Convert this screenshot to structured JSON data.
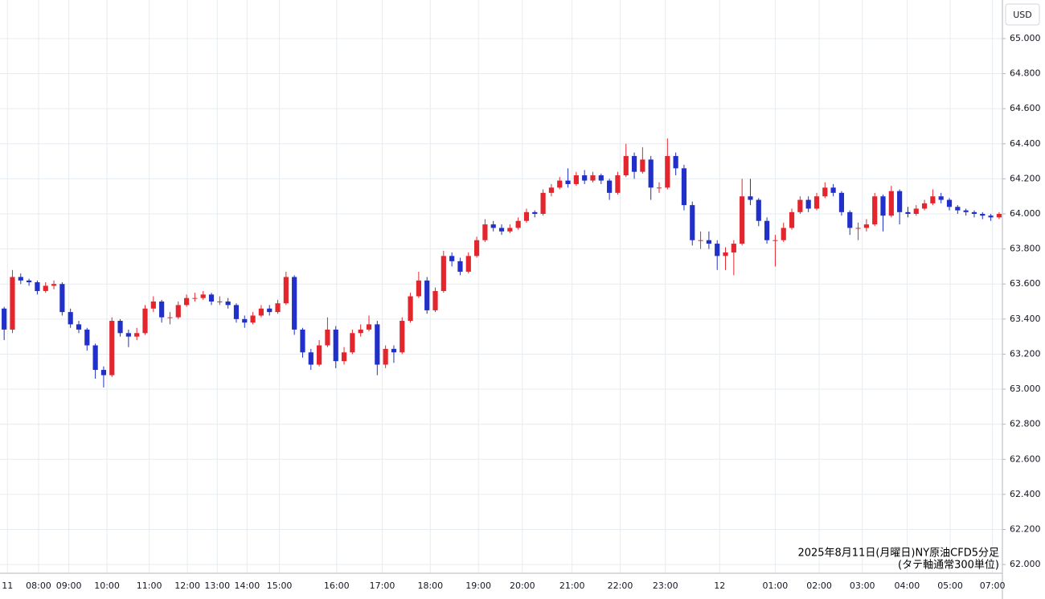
{
  "chart_data": {
    "type": "candlestick",
    "currency": "USD",
    "annotation": [
      "2025年8月11日(月曜日)NY原油CFD5分足",
      "(タテ軸通常300単位)"
    ],
    "up_color": "#e3262d",
    "down_color": "#2030c8",
    "grid": true,
    "xlim": [
      -0.5,
      120.3
    ],
    "ylim": [
      61.95,
      65.22
    ],
    "xticks": [
      {
        "value": 0.4,
        "label": "11"
      },
      {
        "value": 4.15,
        "label": "08:00"
      },
      {
        "value": 7.8,
        "label": "09:00"
      },
      {
        "value": 12.4,
        "label": "10:00"
      },
      {
        "value": 17.5,
        "label": "11:00"
      },
      {
        "value": 22.1,
        "label": "12:00"
      },
      {
        "value": 25.7,
        "label": "13:00"
      },
      {
        "value": 29.3,
        "label": "14:00"
      },
      {
        "value": 33.2,
        "label": "15:00"
      },
      {
        "value": 40.1,
        "label": "16:00"
      },
      {
        "value": 45.6,
        "label": "17:00"
      },
      {
        "value": 51.4,
        "label": "18:00"
      },
      {
        "value": 57.2,
        "label": "19:00"
      },
      {
        "value": 62.5,
        "label": "20:00"
      },
      {
        "value": 68.5,
        "label": "21:00"
      },
      {
        "value": 74.3,
        "label": "22:00"
      },
      {
        "value": 79.75,
        "label": "23:00"
      },
      {
        "value": 86.3,
        "label": "12"
      },
      {
        "value": 93,
        "label": "01:00"
      },
      {
        "value": 98.3,
        "label": "02:00"
      },
      {
        "value": 103.5,
        "label": "03:00"
      },
      {
        "value": 108.9,
        "label": "04:00"
      },
      {
        "value": 114.1,
        "label": "05:00"
      },
      {
        "value": 119.2,
        "label": "07:00"
      }
    ],
    "yticks": [
      {
        "value": 62,
        "label": "62.000"
      },
      {
        "value": 62.2,
        "label": "62.200"
      },
      {
        "value": 62.4,
        "label": "62.400"
      },
      {
        "value": 62.6,
        "label": "62.600"
      },
      {
        "value": 62.8,
        "label": "62.800"
      },
      {
        "value": 63,
        "label": "63.000"
      },
      {
        "value": 63.2,
        "label": "63.200"
      },
      {
        "value": 63.4,
        "label": "63.400"
      },
      {
        "value": 63.6,
        "label": "63.600"
      },
      {
        "value": 63.8,
        "label": "63.800"
      },
      {
        "value": 64,
        "label": "64.000"
      },
      {
        "value": 64.2,
        "label": "64.200"
      },
      {
        "value": 64.4,
        "label": "64.400"
      },
      {
        "value": 64.6,
        "label": "64.600"
      },
      {
        "value": 64.8,
        "label": "64.800"
      },
      {
        "value": 65,
        "label": "65.000"
      }
    ],
    "candles": [
      [
        63.46,
        63.47,
        63.28,
        63.34
      ],
      [
        63.34,
        63.68,
        63.32,
        63.64
      ],
      [
        63.64,
        63.66,
        63.6,
        63.62
      ],
      [
        63.62,
        63.63,
        63.59,
        63.61
      ],
      [
        63.61,
        63.62,
        63.54,
        63.56
      ],
      [
        63.56,
        63.61,
        63.55,
        63.59
      ],
      [
        63.59,
        63.62,
        63.57,
        63.6
      ],
      [
        63.6,
        63.61,
        63.42,
        63.44
      ],
      [
        63.44,
        63.46,
        63.35,
        63.37
      ],
      [
        63.37,
        63.39,
        63.32,
        63.34
      ],
      [
        63.34,
        63.35,
        63.22,
        63.25
      ],
      [
        63.25,
        63.26,
        63.06,
        63.11
      ],
      [
        63.11,
        63.13,
        63.01,
        63.08
      ],
      [
        63.08,
        63.41,
        63.07,
        63.39
      ],
      [
        63.39,
        63.4,
        63.3,
        63.32
      ],
      [
        63.32,
        63.34,
        63.24,
        63.3
      ],
      [
        63.3,
        63.35,
        63.28,
        63.32
      ],
      [
        63.32,
        63.48,
        63.31,
        63.46
      ],
      [
        63.46,
        63.53,
        63.44,
        63.5
      ],
      [
        63.5,
        63.51,
        63.38,
        63.41
      ],
      [
        63.41,
        63.44,
        63.37,
        63.41
      ],
      [
        63.41,
        63.5,
        63.4,
        63.48
      ],
      [
        63.48,
        63.54,
        63.47,
        63.52
      ],
      [
        63.52,
        63.55,
        63.5,
        63.52
      ],
      [
        63.52,
        63.56,
        63.51,
        63.54
      ],
      [
        63.54,
        63.55,
        63.48,
        63.5
      ],
      [
        63.5,
        63.53,
        63.48,
        63.5
      ],
      [
        63.5,
        63.52,
        63.46,
        63.48
      ],
      [
        63.48,
        63.49,
        63.38,
        63.4
      ],
      [
        63.4,
        63.42,
        63.35,
        63.38
      ],
      [
        63.38,
        63.44,
        63.37,
        63.42
      ],
      [
        63.42,
        63.48,
        63.41,
        63.46
      ],
      [
        63.46,
        63.48,
        63.42,
        63.44
      ],
      [
        63.44,
        63.51,
        63.43,
        63.49
      ],
      [
        63.49,
        63.67,
        63.48,
        63.64
      ],
      [
        63.64,
        63.65,
        63.31,
        63.34
      ],
      [
        63.34,
        63.35,
        63.18,
        63.21
      ],
      [
        63.21,
        63.23,
        63.11,
        63.14
      ],
      [
        63.14,
        63.28,
        63.13,
        63.25
      ],
      [
        63.25,
        63.41,
        63.24,
        63.34
      ],
      [
        63.34,
        63.36,
        63.12,
        63.16
      ],
      [
        63.16,
        63.24,
        63.14,
        63.21
      ],
      [
        63.21,
        63.34,
        63.2,
        63.32
      ],
      [
        63.32,
        63.37,
        63.3,
        63.34
      ],
      [
        63.34,
        63.42,
        63.33,
        63.37
      ],
      [
        63.37,
        63.39,
        63.08,
        63.14
      ],
      [
        63.14,
        63.25,
        63.12,
        63.23
      ],
      [
        63.23,
        63.25,
        63.15,
        63.21
      ],
      [
        63.21,
        63.41,
        63.2,
        63.39
      ],
      [
        63.39,
        63.55,
        63.38,
        63.53
      ],
      [
        63.53,
        63.67,
        63.52,
        63.62
      ],
      [
        63.62,
        63.64,
        63.43,
        63.45
      ],
      [
        63.45,
        63.58,
        63.44,
        63.56
      ],
      [
        63.56,
        63.79,
        63.55,
        63.76
      ],
      [
        63.76,
        63.78,
        63.7,
        63.73
      ],
      [
        63.73,
        63.75,
        63.65,
        63.67
      ],
      [
        63.67,
        63.78,
        63.66,
        63.76
      ],
      [
        63.76,
        63.87,
        63.75,
        63.85
      ],
      [
        63.85,
        63.97,
        63.84,
        63.94
      ],
      [
        63.94,
        63.96,
        63.9,
        63.92
      ],
      [
        63.92,
        63.94,
        63.88,
        63.9
      ],
      [
        63.9,
        63.94,
        63.89,
        63.92
      ],
      [
        63.92,
        63.98,
        63.91,
        63.96
      ],
      [
        63.96,
        64.03,
        63.95,
        64.01
      ],
      [
        64.01,
        64.02,
        63.98,
        64.0
      ],
      [
        64.0,
        64.14,
        63.99,
        64.12
      ],
      [
        64.12,
        64.17,
        64.1,
        64.15
      ],
      [
        64.15,
        64.21,
        64.14,
        64.19
      ],
      [
        64.19,
        64.26,
        64.15,
        64.17
      ],
      [
        64.17,
        64.24,
        64.16,
        64.22
      ],
      [
        64.22,
        64.25,
        64.17,
        64.19
      ],
      [
        64.19,
        64.24,
        64.18,
        64.22
      ],
      [
        64.22,
        64.23,
        64.17,
        64.19
      ],
      [
        64.19,
        64.2,
        64.08,
        64.12
      ],
      [
        64.12,
        64.24,
        64.11,
        64.22
      ],
      [
        64.22,
        64.4,
        64.21,
        64.33
      ],
      [
        64.33,
        64.35,
        64.2,
        64.24
      ],
      [
        64.24,
        64.38,
        64.23,
        64.31
      ],
      [
        64.31,
        64.33,
        64.08,
        64.15
      ],
      [
        64.15,
        64.18,
        64.12,
        64.15
      ],
      [
        64.15,
        64.43,
        64.14,
        64.33
      ],
      [
        64.33,
        64.35,
        64.22,
        64.26
      ],
      [
        64.26,
        64.28,
        64.02,
        64.05
      ],
      [
        64.05,
        64.07,
        63.82,
        63.85
      ],
      [
        63.85,
        63.9,
        63.8,
        63.85
      ],
      [
        63.85,
        63.9,
        63.8,
        63.83
      ],
      [
        63.83,
        63.85,
        63.68,
        63.76
      ],
      [
        63.76,
        63.81,
        63.68,
        63.78
      ],
      [
        63.78,
        63.85,
        63.65,
        63.83
      ],
      [
        63.83,
        64.2,
        63.82,
        64.1
      ],
      [
        64.1,
        64.2,
        64.05,
        64.08
      ],
      [
        64.08,
        64.09,
        63.93,
        63.96
      ],
      [
        63.96,
        63.98,
        63.83,
        63.85
      ],
      [
        63.85,
        63.88,
        63.7,
        63.85
      ],
      [
        63.85,
        63.95,
        63.84,
        63.92
      ],
      [
        63.92,
        64.03,
        63.91,
        64.01
      ],
      [
        64.01,
        64.1,
        64.0,
        64.08
      ],
      [
        64.08,
        64.1,
        64.01,
        64.03
      ],
      [
        64.03,
        64.12,
        64.02,
        64.1
      ],
      [
        64.1,
        64.18,
        64.09,
        64.15
      ],
      [
        64.15,
        64.17,
        64.1,
        64.12
      ],
      [
        64.12,
        64.13,
        63.99,
        64.01
      ],
      [
        64.01,
        64.02,
        63.88,
        63.92
      ],
      [
        63.92,
        63.95,
        63.85,
        63.92
      ],
      [
        63.92,
        63.97,
        63.9,
        63.94
      ],
      [
        63.94,
        64.12,
        63.93,
        64.1
      ],
      [
        64.1,
        64.11,
        63.9,
        63.99
      ],
      [
        63.99,
        64.16,
        63.98,
        64.13
      ],
      [
        64.13,
        64.14,
        63.94,
        64.01
      ],
      [
        64.01,
        64.04,
        63.98,
        64.0
      ],
      [
        64.0,
        64.05,
        63.99,
        64.03
      ],
      [
        64.03,
        64.08,
        64.02,
        64.06
      ],
      [
        64.06,
        64.14,
        64.05,
        64.1
      ],
      [
        64.1,
        64.12,
        64.06,
        64.08
      ],
      [
        64.08,
        64.09,
        64.02,
        64.04
      ],
      [
        64.04,
        64.05,
        64.0,
        64.02
      ],
      [
        64.02,
        64.03,
        63.99,
        64.01
      ],
      [
        64.01,
        64.02,
        63.98,
        64.0
      ],
      [
        64.0,
        64.01,
        63.97,
        63.99
      ],
      [
        63.99,
        64.0,
        63.96,
        63.98
      ],
      [
        63.98,
        64.01,
        63.97,
        64.0
      ]
    ]
  }
}
